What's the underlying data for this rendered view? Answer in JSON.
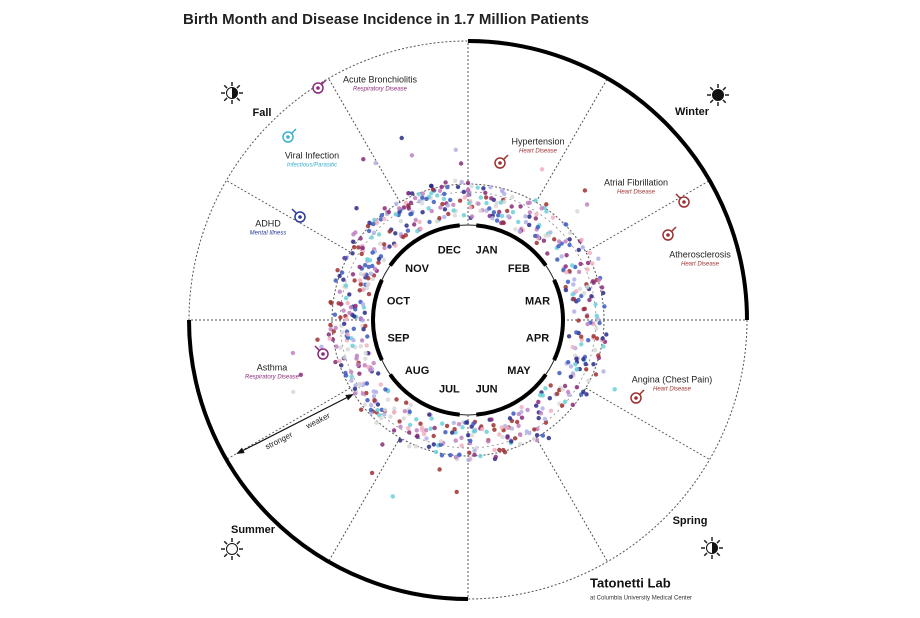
{
  "title": "Birth Month and Disease Incidence in 1.7 Million Patients",
  "months": [
    "JAN",
    "FEB",
    "MAR",
    "APR",
    "MAY",
    "JUN",
    "JUL",
    "AUG",
    "SEP",
    "OCT",
    "NOV",
    "DEC"
  ],
  "seasons": [
    "Fall",
    "Winter",
    "Summer",
    "Spring"
  ],
  "diseases": [
    {
      "name": "Acute Bronchiolitis",
      "category": "Respiratory Disease"
    },
    {
      "name": "Viral Infection",
      "category": "Infectious/Parasitic"
    },
    {
      "name": "ADHD",
      "category": "Mental Illness"
    },
    {
      "name": "Asthma",
      "category": "Respiratory Disease"
    },
    {
      "name": "Hypertension",
      "category": "Heart Disease"
    },
    {
      "name": "Atrial Fibrillation",
      "category": "Heart Disease"
    },
    {
      "name": "Atherosclerosis",
      "category": "Heart Disease"
    },
    {
      "name": "Angina (Chest Pain)",
      "category": "Heart Disease"
    }
  ],
  "scale": {
    "stronger": "stronger",
    "weaker": "weaker"
  },
  "footer": {
    "lab": "Tatonetti Lab",
    "institution": "at Columbia University Medical Center"
  }
}
